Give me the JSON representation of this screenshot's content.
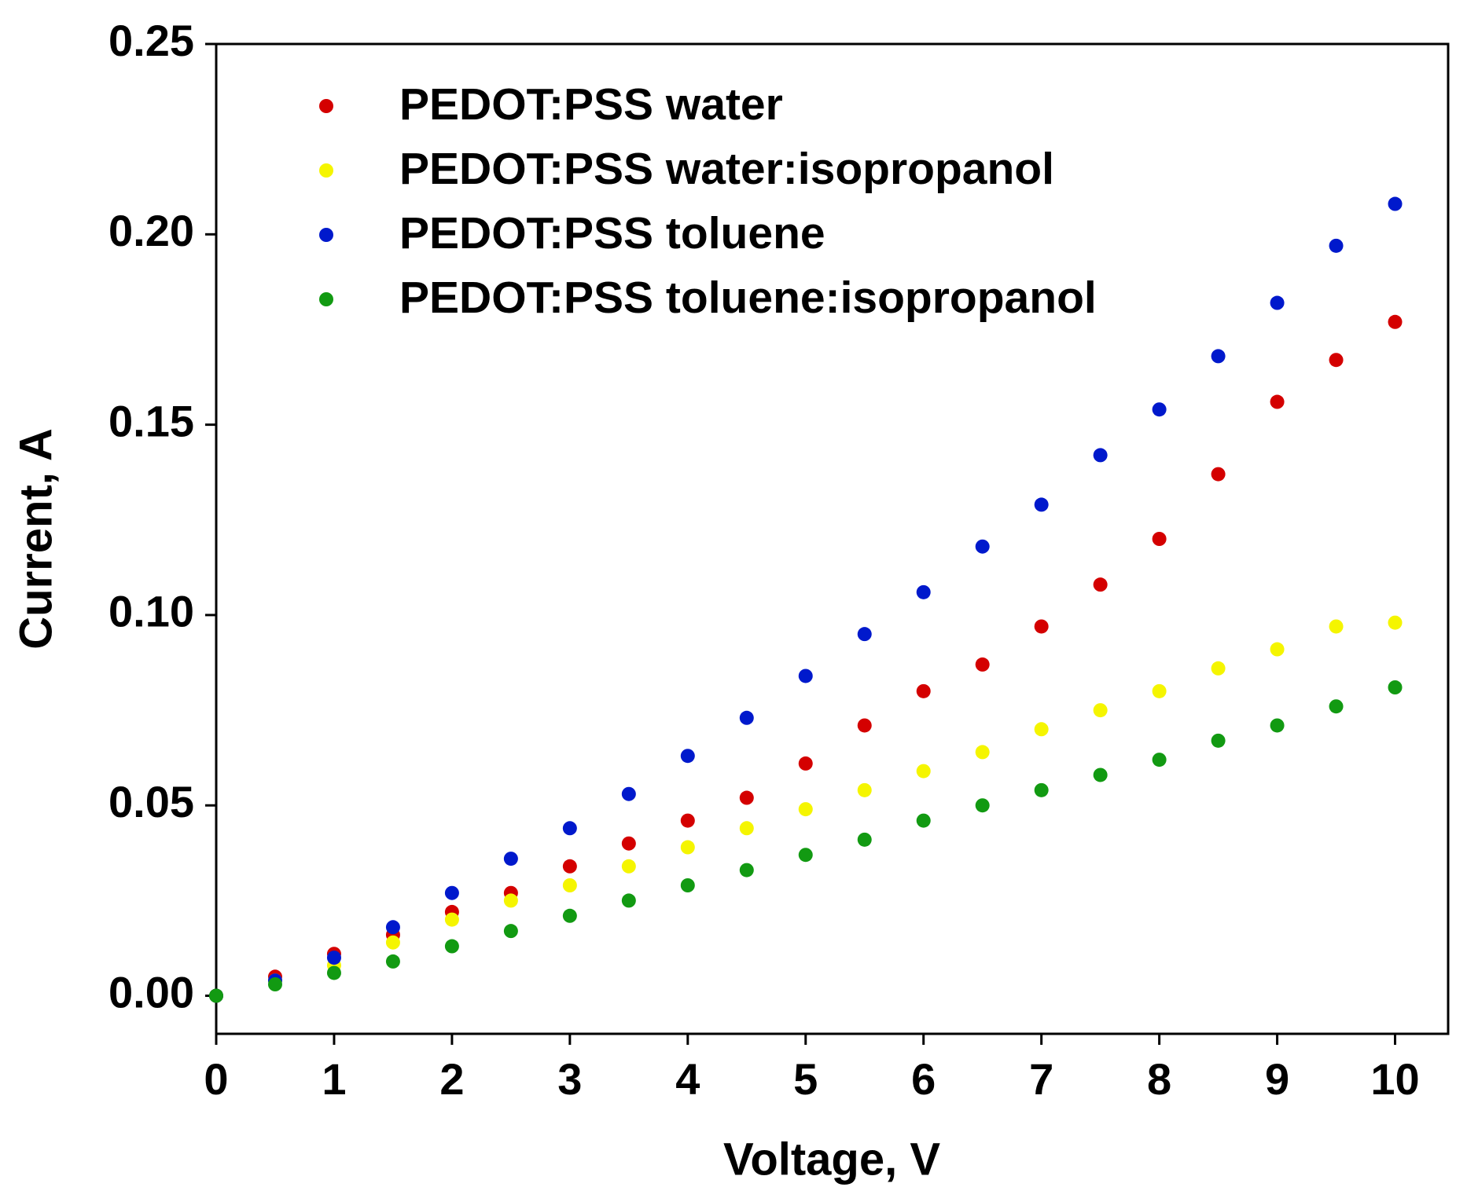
{
  "chart_data": {
    "type": "scatter",
    "xlabel": "Voltage, V",
    "ylabel": "Current, A",
    "x": [
      0,
      0.5,
      1,
      1.5,
      2,
      2.5,
      3,
      3.5,
      4,
      4.5,
      5,
      5.5,
      6,
      6.5,
      7,
      7.5,
      8,
      8.5,
      9,
      9.5,
      10
    ],
    "series": [
      {
        "name": "PEDOT:PSS water",
        "color": "#d40000",
        "values": [
          0,
          0.005,
          0.011,
          0.016,
          0.022,
          0.027,
          0.034,
          0.04,
          0.046,
          0.052,
          0.061,
          0.071,
          0.08,
          0.087,
          0.097,
          0.108,
          0.12,
          0.137,
          0.156,
          0.167,
          0.177
        ]
      },
      {
        "name": "PEDOT:PSS water:isopropanol",
        "color": "#f5f500",
        "values": [
          0,
          0.004,
          0.008,
          0.014,
          0.02,
          0.025,
          0.029,
          0.034,
          0.039,
          0.044,
          0.049,
          0.054,
          0.059,
          0.064,
          0.07,
          0.075,
          0.08,
          0.086,
          0.091,
          0.097,
          0.098
        ]
      },
      {
        "name": "PEDOT:PSS toluene",
        "color": "#0019cc",
        "values": [
          0,
          0.004,
          0.01,
          0.018,
          0.027,
          0.036,
          0.044,
          0.053,
          0.063,
          0.073,
          0.084,
          0.095,
          0.106,
          0.118,
          0.129,
          0.142,
          0.154,
          0.168,
          0.182,
          0.197,
          0.208
        ]
      },
      {
        "name": "PEDOT:PSS toluene:isopropanol",
        "color": "#129a12",
        "values": [
          0,
          0.003,
          0.006,
          0.009,
          0.013,
          0.017,
          0.021,
          0.025,
          0.029,
          0.033,
          0.037,
          0.041,
          0.046,
          0.05,
          0.054,
          0.058,
          0.062,
          0.067,
          0.071,
          0.076,
          0.081
        ]
      }
    ],
    "xlim": [
      0,
      10.45
    ],
    "xticks": [
      0,
      1,
      2,
      3,
      4,
      5,
      6,
      7,
      8,
      9,
      10
    ],
    "ylim": [
      -0.01,
      0.25
    ],
    "yticks": [
      {
        "value": 0,
        "label": "0.00"
      },
      {
        "value": 0.05,
        "label": "0.05"
      },
      {
        "value": 0.1,
        "label": "0.10"
      },
      {
        "value": 0.15,
        "label": "0.15"
      },
      {
        "value": 0.2,
        "label": "0.20"
      },
      {
        "value": 0.25,
        "label": "0.25"
      }
    ],
    "legend": "upper-left",
    "grid": false
  }
}
